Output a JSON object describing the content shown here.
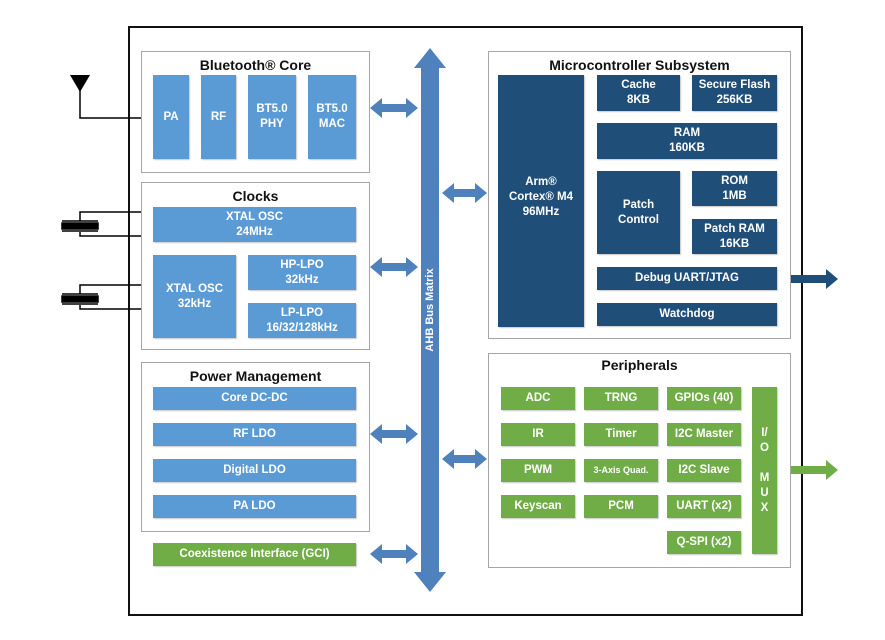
{
  "colors": {
    "light_blue": "#5b9bd5",
    "dark_blue": "#1f4e79",
    "green": "#70ad47",
    "bus": "#4f81bd"
  },
  "bus": {
    "label": "AHB Bus Matrix"
  },
  "bluetooth": {
    "title": "Bluetooth® Core",
    "blocks": [
      "PA",
      "RF",
      "BT5.0\nPHY",
      "BT5.0\nMAC"
    ]
  },
  "clocks": {
    "title": "Clocks",
    "xtal24": "XTAL OSC\n24MHz",
    "xtal32": "XTAL OSC\n32kHz",
    "hplpo": "HP-LPO\n32kHz",
    "lplpo": "LP-LPO\n16/32/128kHz"
  },
  "power": {
    "title": "Power Management",
    "blocks": [
      "Core DC-DC",
      "RF LDO",
      "Digital LDO",
      "PA LDO"
    ]
  },
  "coex": "Coexistence Interface (GCI)",
  "mcu": {
    "title": "Microcontroller Subsystem",
    "cpu": "Arm®\nCortex® M4\n96MHz",
    "cache": "Cache\n8KB",
    "flash": "Secure Flash\n256KB",
    "ram": "RAM\n160KB",
    "patch": "Patch\nControl",
    "rom": "ROM\n1MB",
    "patchram": "Patch RAM\n16KB",
    "debug": "Debug UART/JTAG",
    "watchdog": "Watchdog"
  },
  "peripherals": {
    "title": "Peripherals",
    "col1": [
      "ADC",
      "IR",
      "PWM",
      "Keyscan"
    ],
    "col2": [
      "TRNG",
      "Timer",
      "3-Axis Quad.",
      "PCM"
    ],
    "col3": [
      "GPIOs (40)",
      "I2C Master",
      "I2C Slave",
      "UART (x2)",
      "Q-SPI (x2)"
    ],
    "iomux": "I/\nO\n\nM\nU\nX"
  }
}
